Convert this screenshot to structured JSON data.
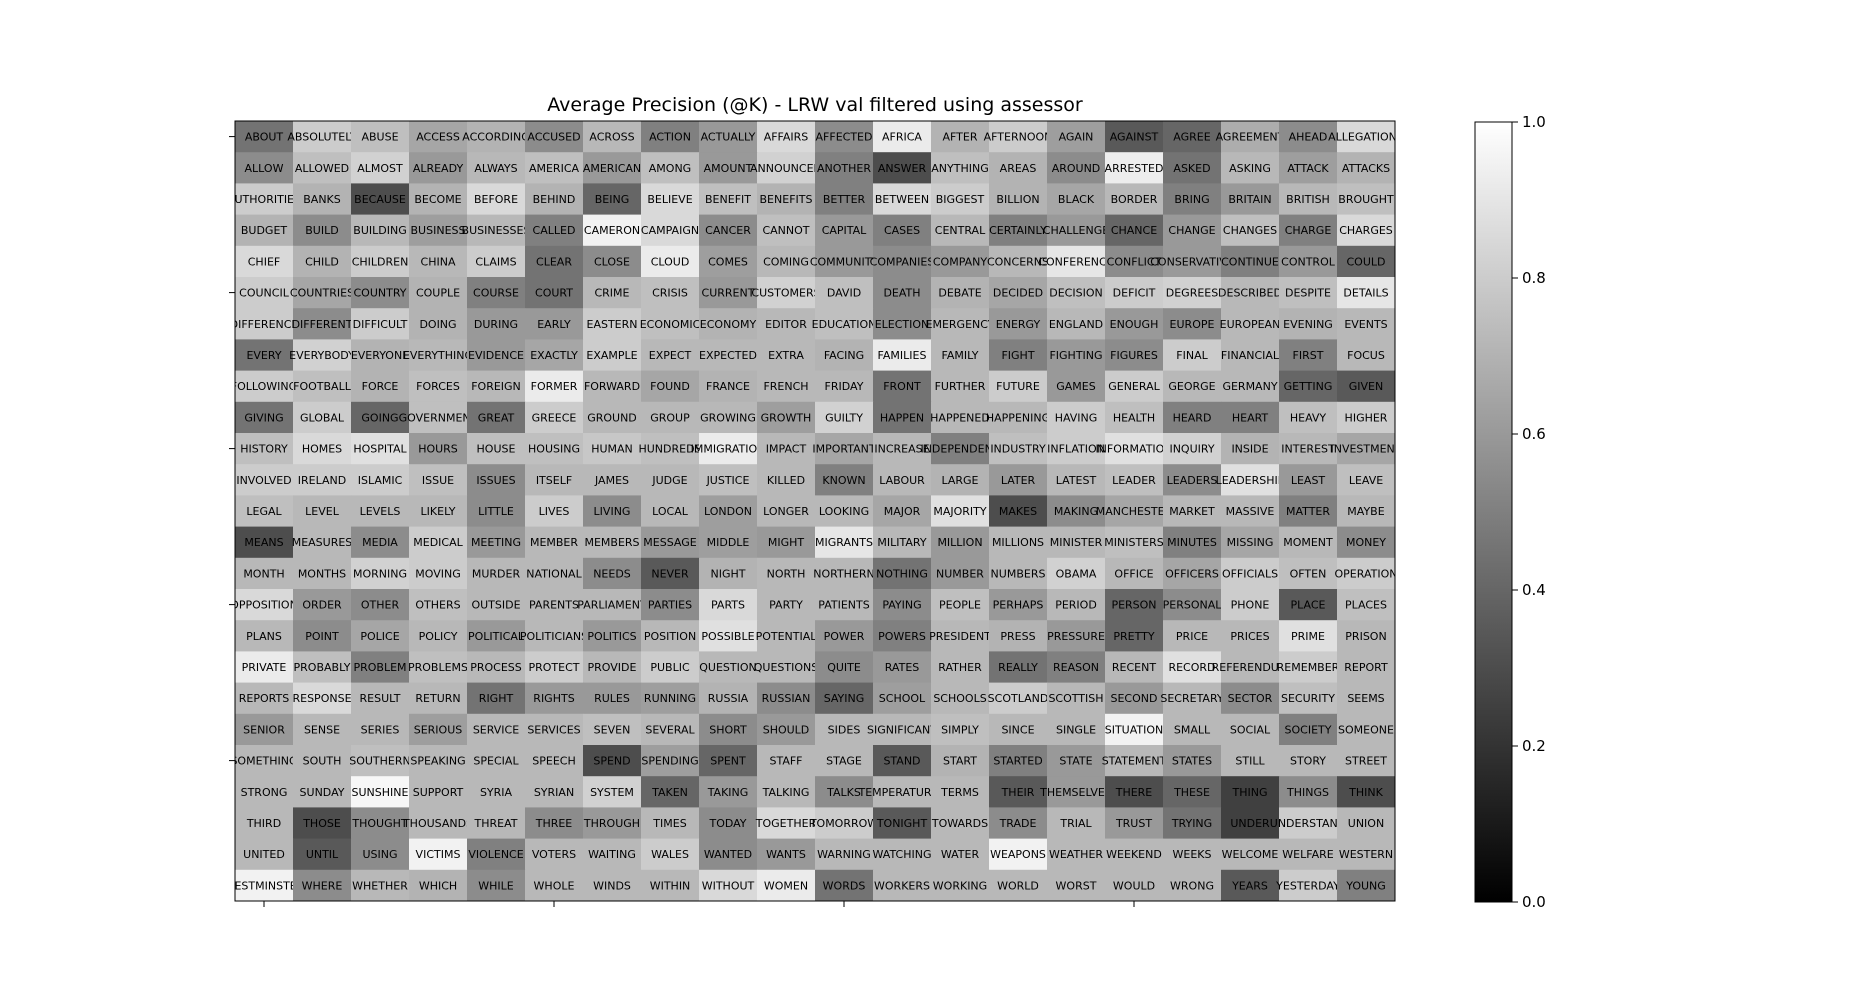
{
  "chart_data": {
    "type": "heatmap",
    "title": "Average Precision (@K) - LRW val filtered using assessor",
    "colormap": "gray",
    "vmin": 0.0,
    "vmax": 1.0,
    "colorbar_ticks": [
      "0.0",
      "0.2",
      "0.4",
      "0.6",
      "0.8",
      "1.0"
    ],
    "rows": 25,
    "cols": 20,
    "words": [
      [
        "ABOUT",
        "ABSOLUTELY",
        "ABUSE",
        "ACCESS",
        "ACCORDING",
        "ACCUSED",
        "ACROSS",
        "ACTION",
        "ACTUALLY",
        "AFFAIRS",
        "AFFECTED",
        "AFRICA",
        "AFTER",
        "AFTERNOON",
        "AGAIN",
        "AGAINST",
        "AGREE",
        "AGREEMENT",
        "AHEAD",
        "ALLEGATIONS"
      ],
      [
        "ALLOW",
        "ALLOWED",
        "ALMOST",
        "ALREADY",
        "ALWAYS",
        "AMERICA",
        "AMERICAN",
        "AMONG",
        "AMOUNT",
        "ANNOUNCED",
        "ANOTHER",
        "ANSWER",
        "ANYTHING",
        "AREAS",
        "AROUND",
        "ARRESTED",
        "ASKED",
        "ASKING",
        "ATTACK",
        "ATTACKS"
      ],
      [
        "AUTHORITIES",
        "BANKS",
        "BECAUSE",
        "BECOME",
        "BEFORE",
        "BEHIND",
        "BEING",
        "BELIEVE",
        "BENEFIT",
        "BENEFITS",
        "BETTER",
        "BETWEEN",
        "BIGGEST",
        "BILLION",
        "BLACK",
        "BORDER",
        "BRING",
        "BRITAIN",
        "BRITISH",
        "BROUGHT"
      ],
      [
        "BUDGET",
        "BUILD",
        "BUILDING",
        "BUSINESS",
        "BUSINESSES",
        "CALLED",
        "CAMERON",
        "CAMPAIGN",
        "CANCER",
        "CANNOT",
        "CAPITAL",
        "CASES",
        "CENTRAL",
        "CERTAINLY",
        "CHALLENGE",
        "CHANCE",
        "CHANGE",
        "CHANGES",
        "CHARGE",
        "CHARGES"
      ],
      [
        "CHIEF",
        "CHILD",
        "CHILDREN",
        "CHINA",
        "CLAIMS",
        "CLEAR",
        "CLOSE",
        "CLOUD",
        "COMES",
        "COMING",
        "COMMUNITY",
        "COMPANIES",
        "COMPANY",
        "CONCERNS",
        "CONFERENCE",
        "CONFLICT",
        "CONSERVATIVE",
        "CONTINUE",
        "CONTROL",
        "COULD"
      ],
      [
        "COUNCIL",
        "COUNTRIES",
        "COUNTRY",
        "COUPLE",
        "COURSE",
        "COURT",
        "CRIME",
        "CRISIS",
        "CURRENT",
        "CUSTOMERS",
        "DAVID",
        "DEATH",
        "DEBATE",
        "DECIDED",
        "DECISION",
        "DEFICIT",
        "DEGREES",
        "DESCRIBED",
        "DESPITE",
        "DETAILS"
      ],
      [
        "DIFFERENCE",
        "DIFFERENT",
        "DIFFICULT",
        "DOING",
        "DURING",
        "EARLY",
        "EASTERN",
        "ECONOMIC",
        "ECONOMY",
        "EDITOR",
        "EDUCATION",
        "ELECTION",
        "EMERGENCY",
        "ENERGY",
        "ENGLAND",
        "ENOUGH",
        "EUROPE",
        "EUROPEAN",
        "EVENING",
        "EVENTS"
      ],
      [
        "EVERY",
        "EVERYBODY",
        "EVERYONE",
        "EVERYTHING",
        "EVIDENCE",
        "EXACTLY",
        "EXAMPLE",
        "EXPECT",
        "EXPECTED",
        "EXTRA",
        "FACING",
        "FAMILIES",
        "FAMILY",
        "FIGHT",
        "FIGHTING",
        "FIGURES",
        "FINAL",
        "FINANCIAL",
        "FIRST",
        "FOCUS"
      ],
      [
        "FOLLOWING",
        "FOOTBALL",
        "FORCE",
        "FORCES",
        "FOREIGN",
        "FORMER",
        "FORWARD",
        "FOUND",
        "FRANCE",
        "FRENCH",
        "FRIDAY",
        "FRONT",
        "FURTHER",
        "FUTURE",
        "GAMES",
        "GENERAL",
        "GEORGE",
        "GERMANY",
        "GETTING",
        "GIVEN"
      ],
      [
        "GIVING",
        "GLOBAL",
        "GOING",
        "GOVERNMENT",
        "GREAT",
        "GREECE",
        "GROUND",
        "GROUP",
        "GROWING",
        "GROWTH",
        "GUILTY",
        "HAPPEN",
        "HAPPENED",
        "HAPPENING",
        "HAVING",
        "HEALTH",
        "HEARD",
        "HEART",
        "HEAVY",
        "HIGHER"
      ],
      [
        "HISTORY",
        "HOMES",
        "HOSPITAL",
        "HOURS",
        "HOUSE",
        "HOUSING",
        "HUMAN",
        "HUNDREDS",
        "IMMIGRATION",
        "IMPACT",
        "IMPORTANT",
        "INCREASE",
        "INDEPENDENT",
        "INDUSTRY",
        "INFLATION",
        "INFORMATION",
        "INQUIRY",
        "INSIDE",
        "INTEREST",
        "INVESTMENT"
      ],
      [
        "INVOLVED",
        "IRELAND",
        "ISLAMIC",
        "ISSUE",
        "ISSUES",
        "ITSELF",
        "JAMES",
        "JUDGE",
        "JUSTICE",
        "KILLED",
        "KNOWN",
        "LABOUR",
        "LARGE",
        "LATER",
        "LATEST",
        "LEADER",
        "LEADERS",
        "LEADERSHIP",
        "LEAST",
        "LEAVE"
      ],
      [
        "LEGAL",
        "LEVEL",
        "LEVELS",
        "LIKELY",
        "LITTLE",
        "LIVES",
        "LIVING",
        "LOCAL",
        "LONDON",
        "LONGER",
        "LOOKING",
        "MAJOR",
        "MAJORITY",
        "MAKES",
        "MAKING",
        "MANCHESTER",
        "MARKET",
        "MASSIVE",
        "MATTER",
        "MAYBE"
      ],
      [
        "MEANS",
        "MEASURES",
        "MEDIA",
        "MEDICAL",
        "MEETING",
        "MEMBER",
        "MEMBERS",
        "MESSAGE",
        "MIDDLE",
        "MIGHT",
        "MIGRANTS",
        "MILITARY",
        "MILLION",
        "MILLIONS",
        "MINISTER",
        "MINISTERS",
        "MINUTES",
        "MISSING",
        "MOMENT",
        "MONEY"
      ],
      [
        "MONTH",
        "MONTHS",
        "MORNING",
        "MOVING",
        "MURDER",
        "NATIONAL",
        "NEEDS",
        "NEVER",
        "NIGHT",
        "NORTH",
        "NORTHERN",
        "NOTHING",
        "NUMBER",
        "NUMBERS",
        "OBAMA",
        "OFFICE",
        "OFFICERS",
        "OFFICIALS",
        "OFTEN",
        "OPERATION"
      ],
      [
        "OPPOSITION",
        "ORDER",
        "OTHER",
        "OTHERS",
        "OUTSIDE",
        "PARENTS",
        "PARLIAMENT",
        "PARTIES",
        "PARTS",
        "PARTY",
        "PATIENTS",
        "PAYING",
        "PEOPLE",
        "PERHAPS",
        "PERIOD",
        "PERSON",
        "PERSONAL",
        "PHONE",
        "PLACE",
        "PLACES"
      ],
      [
        "PLANS",
        "POINT",
        "POLICE",
        "POLICY",
        "POLITICAL",
        "POLITICIANS",
        "POLITICS",
        "POSITION",
        "POSSIBLE",
        "POTENTIAL",
        "POWER",
        "POWERS",
        "PRESIDENT",
        "PRESS",
        "PRESSURE",
        "PRETTY",
        "PRICE",
        "PRICES",
        "PRIME",
        "PRISON"
      ],
      [
        "PRIVATE",
        "PROBABLY",
        "PROBLEM",
        "PROBLEMS",
        "PROCESS",
        "PROTECT",
        "PROVIDE",
        "PUBLIC",
        "QUESTION",
        "QUESTIONS",
        "QUITE",
        "RATES",
        "RATHER",
        "REALLY",
        "REASON",
        "RECENT",
        "RECORD",
        "REFERENDUM",
        "REMEMBER",
        "REPORT"
      ],
      [
        "REPORTS",
        "RESPONSE",
        "RESULT",
        "RETURN",
        "RIGHT",
        "RIGHTS",
        "RULES",
        "RUNNING",
        "RUSSIA",
        "RUSSIAN",
        "SAYING",
        "SCHOOL",
        "SCHOOLS",
        "SCOTLAND",
        "SCOTTISH",
        "SECOND",
        "SECRETARY",
        "SECTOR",
        "SECURITY",
        "SEEMS"
      ],
      [
        "SENIOR",
        "SENSE",
        "SERIES",
        "SERIOUS",
        "SERVICE",
        "SERVICES",
        "SEVEN",
        "SEVERAL",
        "SHORT",
        "SHOULD",
        "SIDES",
        "SIGNIFICANT",
        "SIMPLY",
        "SINCE",
        "SINGLE",
        "SITUATION",
        "SMALL",
        "SOCIAL",
        "SOCIETY",
        "SOMEONE"
      ],
      [
        "SOMETHING",
        "SOUTH",
        "SOUTHERN",
        "SPEAKING",
        "SPECIAL",
        "SPEECH",
        "SPEND",
        "SPENDING",
        "SPENT",
        "STAFF",
        "STAGE",
        "STAND",
        "START",
        "STARTED",
        "STATE",
        "STATEMENT",
        "STATES",
        "STILL",
        "STORY",
        "STREET"
      ],
      [
        "STRONG",
        "SUNDAY",
        "SUNSHINE",
        "SUPPORT",
        "SYRIA",
        "SYRIAN",
        "SYSTEM",
        "TAKEN",
        "TAKING",
        "TALKING",
        "TALKS",
        "TEMPERATURES",
        "TERMS",
        "THEIR",
        "THEMSELVES",
        "THERE",
        "THESE",
        "THING",
        "THINGS",
        "THINK"
      ],
      [
        "THIRD",
        "THOSE",
        "THOUGHT",
        "THOUSANDS",
        "THREAT",
        "THREE",
        "THROUGH",
        "TIMES",
        "TODAY",
        "TOGETHER",
        "TOMORROW",
        "TONIGHT",
        "TOWARDS",
        "TRADE",
        "TRIAL",
        "TRUST",
        "TRYING",
        "UNDER",
        "UNDERSTAND",
        "UNION"
      ],
      [
        "UNITED",
        "UNTIL",
        "USING",
        "VICTIMS",
        "VIOLENCE",
        "VOTERS",
        "WAITING",
        "WALES",
        "WANTED",
        "WANTS",
        "WARNING",
        "WATCHING",
        "WATER",
        "WEAPONS",
        "WEATHER",
        "WEEKEND",
        "WEEKS",
        "WELCOME",
        "WELFARE",
        "WESTERN"
      ],
      [
        "WESTMINSTER",
        "WHERE",
        "WHETHER",
        "WHICH",
        "WHILE",
        "WHOLE",
        "WINDS",
        "WITHIN",
        "WITHOUT",
        "WOMEN",
        "WORDS",
        "WORKERS",
        "WORKING",
        "WORLD",
        "WORST",
        "WOULD",
        "WRONG",
        "YEARS",
        "YESTERDAY",
        "YOUNG"
      ]
    ],
    "values": [
      [
        0.45,
        0.8,
        0.75,
        0.65,
        0.7,
        0.55,
        0.72,
        0.5,
        0.6,
        0.85,
        0.55,
        0.92,
        0.7,
        0.8,
        0.62,
        0.35,
        0.4,
        0.68,
        0.55,
        0.85
      ],
      [
        0.55,
        0.75,
        0.82,
        0.6,
        0.72,
        0.75,
        0.6,
        0.75,
        0.6,
        0.82,
        0.5,
        0.3,
        0.75,
        0.7,
        0.55,
        0.93,
        0.45,
        0.72,
        0.62,
        0.7
      ],
      [
        0.8,
        0.7,
        0.3,
        0.7,
        0.85,
        0.7,
        0.4,
        0.85,
        0.75,
        0.7,
        0.5,
        0.85,
        0.8,
        0.7,
        0.65,
        0.72,
        0.5,
        0.6,
        0.72,
        0.75
      ],
      [
        0.7,
        0.55,
        0.72,
        0.62,
        0.72,
        0.5,
        0.95,
        0.85,
        0.55,
        0.75,
        0.6,
        0.5,
        0.72,
        0.5,
        0.6,
        0.4,
        0.6,
        0.75,
        0.5,
        0.85
      ],
      [
        0.85,
        0.7,
        0.8,
        0.72,
        0.8,
        0.45,
        0.55,
        0.92,
        0.62,
        0.72,
        0.6,
        0.55,
        0.6,
        0.72,
        0.9,
        0.55,
        0.6,
        0.5,
        0.6,
        0.4
      ],
      [
        0.8,
        0.65,
        0.55,
        0.7,
        0.5,
        0.45,
        0.72,
        0.75,
        0.6,
        0.82,
        0.75,
        0.55,
        0.7,
        0.65,
        0.75,
        0.8,
        0.82,
        0.72,
        0.75,
        0.9
      ],
      [
        0.8,
        0.55,
        0.8,
        0.7,
        0.6,
        0.6,
        0.8,
        0.75,
        0.7,
        0.72,
        0.75,
        0.55,
        0.72,
        0.6,
        0.72,
        0.6,
        0.55,
        0.72,
        0.7,
        0.72
      ],
      [
        0.45,
        0.82,
        0.7,
        0.72,
        0.6,
        0.65,
        0.8,
        0.72,
        0.72,
        0.72,
        0.7,
        0.92,
        0.72,
        0.5,
        0.6,
        0.55,
        0.8,
        0.72,
        0.5,
        0.72
      ],
      [
        0.8,
        0.75,
        0.7,
        0.75,
        0.72,
        0.92,
        0.72,
        0.65,
        0.7,
        0.72,
        0.72,
        0.45,
        0.72,
        0.8,
        0.6,
        0.8,
        0.72,
        0.72,
        0.4,
        0.35
      ],
      [
        0.45,
        0.8,
        0.4,
        0.75,
        0.45,
        0.8,
        0.72,
        0.72,
        0.72,
        0.62,
        0.82,
        0.45,
        0.72,
        0.72,
        0.8,
        0.75,
        0.5,
        0.5,
        0.75,
        0.8
      ],
      [
        0.75,
        0.85,
        0.88,
        0.6,
        0.75,
        0.75,
        0.78,
        0.75,
        0.92,
        0.72,
        0.65,
        0.72,
        0.5,
        0.75,
        0.8,
        0.88,
        0.82,
        0.7,
        0.72,
        0.65
      ],
      [
        0.8,
        0.8,
        0.8,
        0.75,
        0.55,
        0.72,
        0.72,
        0.72,
        0.75,
        0.72,
        0.5,
        0.72,
        0.7,
        0.6,
        0.72,
        0.75,
        0.55,
        0.88,
        0.6,
        0.75
      ],
      [
        0.75,
        0.72,
        0.72,
        0.72,
        0.55,
        0.8,
        0.55,
        0.72,
        0.62,
        0.72,
        0.72,
        0.65,
        0.88,
        0.3,
        0.55,
        0.65,
        0.72,
        0.72,
        0.5,
        0.72
      ],
      [
        0.3,
        0.72,
        0.55,
        0.8,
        0.6,
        0.72,
        0.72,
        0.6,
        0.62,
        0.6,
        0.9,
        0.72,
        0.6,
        0.72,
        0.72,
        0.75,
        0.5,
        0.65,
        0.72,
        0.55
      ],
      [
        0.72,
        0.72,
        0.82,
        0.8,
        0.72,
        0.72,
        0.55,
        0.35,
        0.7,
        0.72,
        0.72,
        0.45,
        0.6,
        0.72,
        0.82,
        0.72,
        0.65,
        0.8,
        0.75,
        0.8
      ],
      [
        0.85,
        0.6,
        0.55,
        0.75,
        0.72,
        0.72,
        0.72,
        0.55,
        0.85,
        0.72,
        0.72,
        0.55,
        0.75,
        0.6,
        0.72,
        0.4,
        0.55,
        0.8,
        0.35,
        0.75
      ],
      [
        0.72,
        0.55,
        0.65,
        0.72,
        0.6,
        0.72,
        0.6,
        0.72,
        0.88,
        0.72,
        0.6,
        0.5,
        0.72,
        0.7,
        0.6,
        0.4,
        0.72,
        0.72,
        0.88,
        0.72
      ],
      [
        0.92,
        0.75,
        0.5,
        0.75,
        0.72,
        0.8,
        0.72,
        0.8,
        0.72,
        0.72,
        0.55,
        0.6,
        0.72,
        0.45,
        0.5,
        0.72,
        0.88,
        0.72,
        0.8,
        0.72
      ],
      [
        0.72,
        0.85,
        0.72,
        0.72,
        0.45,
        0.6,
        0.6,
        0.62,
        0.7,
        0.55,
        0.4,
        0.62,
        0.72,
        0.8,
        0.72,
        0.6,
        0.72,
        0.55,
        0.75,
        0.72
      ],
      [
        0.6,
        0.72,
        0.72,
        0.62,
        0.72,
        0.72,
        0.75,
        0.72,
        0.55,
        0.6,
        0.72,
        0.72,
        0.75,
        0.72,
        0.72,
        0.95,
        0.72,
        0.72,
        0.5,
        0.72
      ],
      [
        0.72,
        0.72,
        0.75,
        0.72,
        0.72,
        0.72,
        0.3,
        0.62,
        0.4,
        0.72,
        0.72,
        0.35,
        0.7,
        0.5,
        0.6,
        0.72,
        0.6,
        0.72,
        0.72,
        0.72
      ],
      [
        0.72,
        0.72,
        0.97,
        0.72,
        0.72,
        0.72,
        0.82,
        0.4,
        0.6,
        0.72,
        0.55,
        0.72,
        0.72,
        0.35,
        0.6,
        0.3,
        0.4,
        0.25,
        0.55,
        0.3
      ],
      [
        0.72,
        0.3,
        0.55,
        0.72,
        0.72,
        0.55,
        0.6,
        0.72,
        0.55,
        0.85,
        0.8,
        0.35,
        0.72,
        0.55,
        0.72,
        0.6,
        0.45,
        0.25,
        0.8,
        0.72
      ],
      [
        0.72,
        0.35,
        0.55,
        0.95,
        0.5,
        0.72,
        0.72,
        0.8,
        0.55,
        0.6,
        0.72,
        0.72,
        0.72,
        0.95,
        0.72,
        0.72,
        0.72,
        0.72,
        0.72,
        0.72
      ],
      [
        0.95,
        0.55,
        0.72,
        0.7,
        0.55,
        0.72,
        0.72,
        0.72,
        0.85,
        0.92,
        0.45,
        0.72,
        0.72,
        0.72,
        0.72,
        0.72,
        0.72,
        0.35,
        0.8,
        0.5
      ]
    ]
  }
}
